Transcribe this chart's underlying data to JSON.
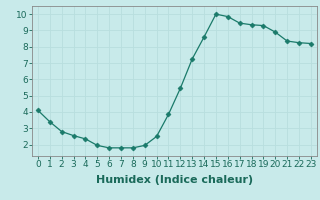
{
  "x": [
    0,
    1,
    2,
    3,
    4,
    5,
    6,
    7,
    8,
    9,
    10,
    11,
    12,
    13,
    14,
    15,
    16,
    17,
    18,
    19,
    20,
    21,
    22,
    23
  ],
  "y": [
    4.1,
    3.4,
    2.8,
    2.55,
    2.35,
    1.95,
    1.8,
    1.8,
    1.8,
    1.95,
    2.5,
    3.85,
    5.45,
    7.25,
    8.6,
    10.0,
    9.85,
    9.45,
    9.35,
    9.3,
    8.9,
    8.35,
    8.25,
    8.2
  ],
  "line_color": "#1a7a6a",
  "marker": "D",
  "marker_size": 2.5,
  "bg_color": "#c8eaea",
  "grid_color": "#e8f8f8",
  "xlabel": "Humidex (Indice chaleur)",
  "xlabel_fontsize": 8,
  "xlim": [
    -0.5,
    23.5
  ],
  "ylim": [
    1.3,
    10.5
  ],
  "yticks": [
    2,
    3,
    4,
    5,
    6,
    7,
    8,
    9,
    10
  ],
  "xticks": [
    0,
    1,
    2,
    3,
    4,
    5,
    6,
    7,
    8,
    9,
    10,
    11,
    12,
    13,
    14,
    15,
    16,
    17,
    18,
    19,
    20,
    21,
    22,
    23
  ],
  "tick_fontsize": 6.5,
  "tick_color": "#1a6a5a",
  "spine_color": "#888888",
  "grid_color2": "#b8dede"
}
